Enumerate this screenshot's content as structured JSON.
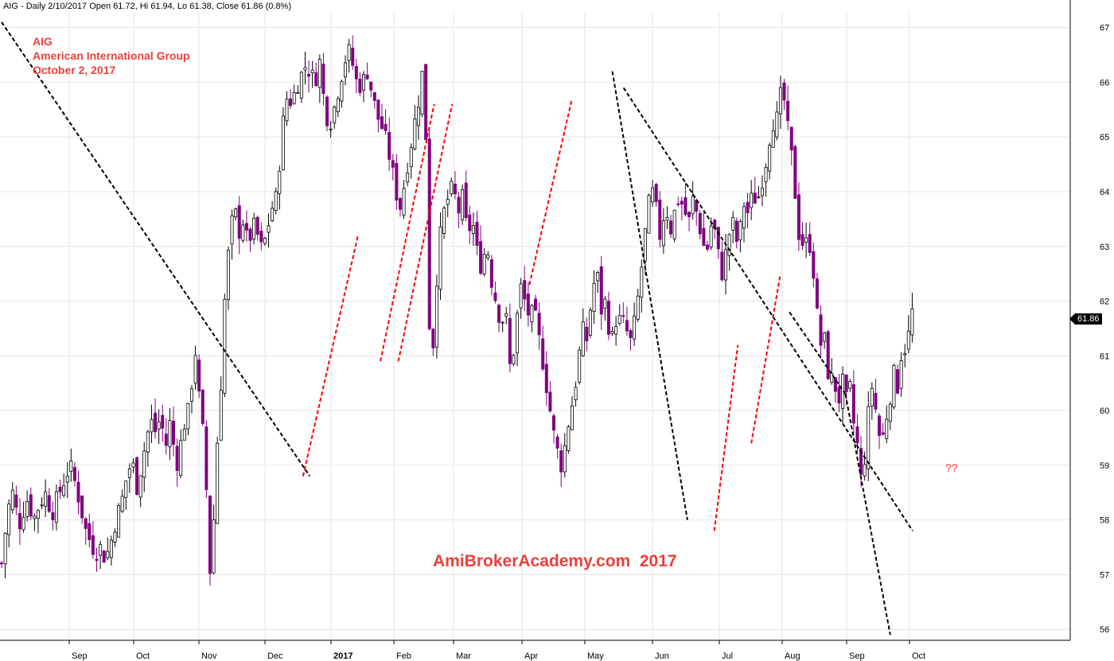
{
  "header": {
    "symbol": "AIG",
    "info": "AIG - Daily 2/10/2017 Open 61.72, Hi 61.94, Lo 61.38, Close 61.86 (0.8%)"
  },
  "annotations": {
    "line1": "AIG",
    "line2": "American International Group",
    "line3": "October 2, 2017",
    "watermark": "AmiBrokerAcademy.com  2017",
    "question": "??"
  },
  "last_price_label": "61.86",
  "colors": {
    "up_candle": "#ffffff",
    "down_candle": "#800080",
    "trend_black": "#000000",
    "trend_red": "#ff0000",
    "annotation_text": "#e8413b"
  },
  "chart_data": {
    "type": "candlestick",
    "title": "",
    "ylim": [
      55.8,
      67.3
    ],
    "y_ticks": [
      56,
      57,
      58,
      59,
      60,
      61,
      62,
      63,
      64,
      65,
      66,
      67
    ],
    "x_ticks": [
      "Sep",
      "Oct",
      "Nov",
      "Dec",
      "2017",
      "Feb",
      "Mar",
      "Apr",
      "May",
      "Jun",
      "Jul",
      "Aug",
      "Sep",
      "Oct"
    ],
    "last_close": 61.86,
    "close_path": [
      [
        0,
        57.2
      ],
      [
        8,
        58.2
      ],
      [
        14,
        58.5
      ],
      [
        22,
        57.9
      ],
      [
        28,
        58.2
      ],
      [
        33,
        58.4
      ],
      [
        40,
        58.0
      ],
      [
        48,
        58.3
      ],
      [
        56,
        58.5
      ],
      [
        63,
        58.1
      ],
      [
        70,
        58.4
      ],
      [
        78,
        58.7
      ],
      [
        86,
        59.0
      ],
      [
        94,
        58.6
      ],
      [
        100,
        58.2
      ],
      [
        106,
        57.8
      ],
      [
        112,
        57.6
      ],
      [
        118,
        57.4
      ],
      [
        124,
        57.5
      ],
      [
        130,
        57.3
      ],
      [
        136,
        57.5
      ],
      [
        142,
        57.9
      ],
      [
        148,
        58.2
      ],
      [
        152,
        58.4
      ],
      [
        156,
        58.7
      ],
      [
        160,
        58.9
      ],
      [
        164,
        59.1
      ],
      [
        170,
        58.6
      ],
      [
        176,
        59.0
      ],
      [
        182,
        59.5
      ],
      [
        188,
        59.8
      ],
      [
        194,
        59.6
      ],
      [
        200,
        59.9
      ],
      [
        206,
        59.3
      ],
      [
        212,
        59.8
      ],
      [
        218,
        59.2
      ],
      [
        222,
        59.0
      ],
      [
        228,
        59.7
      ],
      [
        234,
        59.9
      ],
      [
        240,
        60.6
      ],
      [
        244,
        61.1
      ],
      [
        248,
        60.3
      ],
      [
        252,
        59.7
      ],
      [
        256,
        59.4
      ],
      [
        260,
        57.3
      ],
      [
        264,
        56.9
      ],
      [
        268,
        58.5
      ],
      [
        272,
        59.6
      ],
      [
        276,
        60.5
      ],
      [
        280,
        61.9
      ],
      [
        284,
        62.7
      ],
      [
        288,
        63.2
      ],
      [
        292,
        63.7
      ],
      [
        296,
        63.5
      ],
      [
        300,
        63.2
      ],
      [
        304,
        63.5
      ],
      [
        310,
        63.0
      ],
      [
        316,
        63.4
      ],
      [
        322,
        63.2
      ],
      [
        328,
        62.9
      ],
      [
        334,
        63.3
      ],
      [
        340,
        63.7
      ],
      [
        346,
        63.9
      ],
      [
        350,
        64.6
      ],
      [
        355,
        65.4
      ],
      [
        360,
        65.8
      ],
      [
        365,
        65.6
      ],
      [
        370,
        65.9
      ],
      [
        376,
        66.1
      ],
      [
        382,
        66.3
      ],
      [
        388,
        66.2
      ],
      [
        394,
        66.0
      ],
      [
        400,
        66.4
      ],
      [
        406,
        65.6
      ],
      [
        412,
        65.2
      ],
      [
        418,
        65.5
      ],
      [
        424,
        65.9
      ],
      [
        430,
        66.3
      ],
      [
        436,
        66.6
      ],
      [
        442,
        66.3
      ],
      [
        448,
        65.9
      ],
      [
        454,
        66.0
      ],
      [
        460,
        66.2
      ],
      [
        466,
        65.8
      ],
      [
        472,
        65.4
      ],
      [
        478,
        65.2
      ],
      [
        484,
        64.9
      ],
      [
        490,
        64.5
      ],
      [
        496,
        64.0
      ],
      [
        502,
        63.7
      ],
      [
        508,
        64.3
      ],
      [
        514,
        64.8
      ],
      [
        520,
        65.3
      ],
      [
        526,
        65.8
      ],
      [
        532,
        66.5
      ],
      [
        536,
        62.8
      ],
      [
        540,
        60.6
      ],
      [
        544,
        61.5
      ],
      [
        548,
        62.6
      ],
      [
        552,
        63.2
      ],
      [
        556,
        63.6
      ],
      [
        562,
        63.9
      ],
      [
        568,
        64.1
      ],
      [
        574,
        63.6
      ],
      [
        580,
        63.9
      ],
      [
        586,
        63.2
      ],
      [
        592,
        63.5
      ],
      [
        598,
        62.9
      ],
      [
        604,
        62.6
      ],
      [
        610,
        63.1
      ],
      [
        616,
        62.4
      ],
      [
        622,
        62.0
      ],
      [
        628,
        61.6
      ],
      [
        634,
        61.8
      ],
      [
        640,
        60.7
      ],
      [
        646,
        61.3
      ],
      [
        652,
        62.3
      ],
      [
        658,
        62.0
      ],
      [
        664,
        61.7
      ],
      [
        670,
        61.8
      ],
      [
        676,
        61.3
      ],
      [
        682,
        60.8
      ],
      [
        688,
        60.2
      ],
      [
        694,
        59.6
      ],
      [
        700,
        59.2
      ],
      [
        704,
        59.0
      ],
      [
        708,
        59.3
      ],
      [
        712,
        59.7
      ],
      [
        716,
        60.0
      ],
      [
        720,
        60.3
      ],
      [
        724,
        60.7
      ],
      [
        728,
        61.2
      ],
      [
        732,
        61.5
      ],
      [
        736,
        61.3
      ],
      [
        740,
        61.8
      ],
      [
        744,
        62.2
      ],
      [
        748,
        62.6
      ],
      [
        752,
        62.2
      ],
      [
        756,
        61.6
      ],
      [
        760,
        62.1
      ],
      [
        764,
        61.5
      ],
      [
        768,
        61.3
      ],
      [
        772,
        61.7
      ],
      [
        776,
        61.5
      ],
      [
        780,
        61.9
      ],
      [
        784,
        61.3
      ],
      [
        788,
        61.5
      ],
      [
        792,
        61.2
      ],
      [
        796,
        61.6
      ],
      [
        800,
        62.0
      ],
      [
        804,
        62.5
      ],
      [
        808,
        63.0
      ],
      [
        812,
        63.6
      ],
      [
        816,
        63.9
      ],
      [
        820,
        64.0
      ],
      [
        824,
        63.6
      ],
      [
        828,
        63.2
      ],
      [
        832,
        63.5
      ],
      [
        836,
        63.8
      ],
      [
        840,
        63.2
      ],
      [
        846,
        63.6
      ],
      [
        852,
        63.9
      ],
      [
        858,
        63.7
      ],
      [
        864,
        63.4
      ],
      [
        870,
        63.9
      ],
      [
        876,
        63.5
      ],
      [
        882,
        63.1
      ],
      [
        886,
        62.8
      ],
      [
        890,
        63.2
      ],
      [
        894,
        63.5
      ],
      [
        898,
        63.2
      ],
      [
        902,
        62.8
      ],
      [
        906,
        62.5
      ],
      [
        910,
        62.8
      ],
      [
        914,
        63.1
      ],
      [
        918,
        63.5
      ],
      [
        922,
        63.3
      ],
      [
        926,
        63.0
      ],
      [
        930,
        63.4
      ],
      [
        934,
        63.8
      ],
      [
        938,
        63.6
      ],
      [
        942,
        63.8
      ],
      [
        946,
        64.0
      ],
      [
        950,
        63.7
      ],
      [
        954,
        64.1
      ],
      [
        958,
        64.3
      ],
      [
        962,
        64.6
      ],
      [
        966,
        65.0
      ],
      [
        970,
        65.3
      ],
      [
        974,
        65.2
      ],
      [
        978,
        65.6
      ],
      [
        982,
        65.9
      ],
      [
        986,
        65.5
      ],
      [
        990,
        65.0
      ],
      [
        994,
        64.6
      ],
      [
        998,
        64.0
      ],
      [
        1002,
        63.3
      ],
      [
        1006,
        63.0
      ],
      [
        1010,
        63.2
      ],
      [
        1014,
        62.9
      ],
      [
        1018,
        63.1
      ],
      [
        1022,
        62.4
      ],
      [
        1026,
        61.7
      ],
      [
        1030,
        61.2
      ],
      [
        1034,
        61.4
      ],
      [
        1038,
        60.9
      ],
      [
        1042,
        60.4
      ],
      [
        1046,
        60.7
      ],
      [
        1050,
        60.3
      ],
      [
        1054,
        60.2
      ],
      [
        1058,
        60.5
      ],
      [
        1062,
        60.1
      ],
      [
        1066,
        60.6
      ],
      [
        1070,
        59.9
      ],
      [
        1074,
        59.6
      ],
      [
        1078,
        59.2
      ],
      [
        1082,
        58.6
      ],
      [
        1086,
        59.2
      ],
      [
        1090,
        59.9
      ],
      [
        1094,
        60.5
      ],
      [
        1098,
        60.2
      ],
      [
        1102,
        59.7
      ],
      [
        1106,
        59.4
      ],
      [
        1110,
        59.6
      ],
      [
        1114,
        60.0
      ],
      [
        1118,
        60.3
      ],
      [
        1122,
        60.7
      ],
      [
        1126,
        60.3
      ],
      [
        1130,
        60.9
      ],
      [
        1134,
        61.2
      ],
      [
        1138,
        61.1
      ],
      [
        1142,
        61.5
      ],
      [
        1146,
        61.86
      ]
    ],
    "trendlines": [
      {
        "color": "black",
        "points": [
          [
            0,
            67.1
          ],
          [
            275,
            58.8
          ]
        ]
      },
      {
        "color": "black",
        "points": [
          [
            545,
            66.2
          ],
          [
            612,
            58.0
          ]
        ]
      },
      {
        "color": "black",
        "points": [
          [
            555,
            65.9
          ],
          [
            813,
            57.8
          ]
        ]
      },
      {
        "color": "black",
        "points": [
          [
            703,
            61.8
          ],
          [
            753,
            60.3
          ]
        ]
      },
      {
        "color": "black",
        "points": [
          [
            753,
            60.3
          ],
          [
            793,
            55.9
          ]
        ]
      },
      {
        "color": "red",
        "points": [
          [
            269,
            58.8
          ],
          [
            318,
            63.2
          ]
        ]
      },
      {
        "color": "red",
        "points": [
          [
            338,
            60.9
          ],
          [
            386,
            65.6
          ]
        ]
      },
      {
        "color": "red",
        "points": [
          [
            354,
            60.9
          ],
          [
            402,
            65.6
          ]
        ]
      },
      {
        "color": "red",
        "points": [
          [
            471,
            62.3
          ],
          [
            509,
            65.7
          ]
        ]
      },
      {
        "color": "red",
        "points": [
          [
            636,
            57.8
          ],
          [
            657,
            61.2
          ]
        ]
      },
      {
        "color": "red",
        "points": [
          [
            669,
            59.4
          ],
          [
            695,
            62.5
          ]
        ]
      }
    ]
  }
}
